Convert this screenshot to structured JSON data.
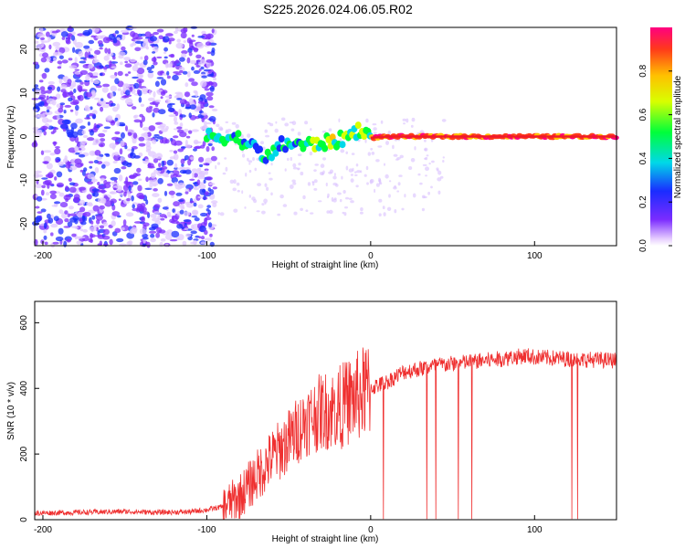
{
  "title": "S225.2026.024.06.05.R02",
  "colors": {
    "spectral_series": "#ef3030",
    "snr_series": "#ef3030",
    "axis": "#000000"
  },
  "chart_data": [
    {
      "type": "heatmap",
      "name": "spectrogram",
      "xlabel": "Height of straight line (km)",
      "ylabel": "Frequency (Hz)",
      "xlim": [
        -205,
        150
      ],
      "ylim": [
        -25,
        25
      ],
      "xticks": [
        -200,
        -100,
        0,
        100
      ],
      "xtick_labels": [
        "-200",
        "-100",
        "0",
        "100"
      ],
      "yticks": [
        -20,
        -10,
        0,
        10,
        20
      ],
      "ytick_labels": [
        "-20",
        "-10",
        "0",
        "10",
        "20"
      ],
      "ridge_line": {
        "x": [
          -100,
          -90,
          -80,
          -70,
          -62,
          -55,
          -48,
          -40,
          -30,
          -20,
          -12,
          -5,
          0,
          10,
          20,
          40,
          60,
          80,
          100,
          150
        ],
        "y": [
          0,
          0,
          -0.5,
          -3,
          -5,
          -2,
          -1.5,
          -2,
          -1.5,
          -1,
          0.5,
          2,
          -0.3,
          0,
          0,
          0,
          0,
          0,
          0,
          0
        ]
      },
      "colorbar": {
        "label": "Normalized spectral amplitude",
        "range": [
          0,
          1
        ],
        "ticks": [
          0.0,
          0.2,
          0.4,
          0.6,
          0.8
        ],
        "tick_labels": [
          "0.0",
          "0.2",
          "0.4",
          "0.6",
          "0.8"
        ]
      }
    },
    {
      "type": "line",
      "name": "snr",
      "xlabel": "Height of straight line (km)",
      "ylabel": "SNR (10 * v/v)",
      "xlim": [
        -205,
        150
      ],
      "ylim": [
        0,
        665
      ],
      "xticks": [
        -200,
        -100,
        0,
        100
      ],
      "xtick_labels": [
        "-200",
        "-100",
        "0",
        "100"
      ],
      "yticks": [
        0,
        200,
        400,
        600
      ],
      "ytick_labels": [
        "0",
        "200",
        "400",
        "600"
      ],
      "x": [
        -205,
        -180,
        -150,
        -130,
        -110,
        -100,
        -90,
        -80,
        -70,
        -60,
        -50,
        -40,
        -30,
        -20,
        -10,
        0,
        10,
        20,
        40,
        60,
        80,
        95,
        100,
        120,
        150
      ],
      "y": [
        20,
        22,
        25,
        22,
        24,
        30,
        40,
        70,
        130,
        190,
        240,
        300,
        330,
        340,
        370,
        400,
        420,
        450,
        470,
        480,
        490,
        500,
        495,
        490,
        485
      ]
    }
  ]
}
